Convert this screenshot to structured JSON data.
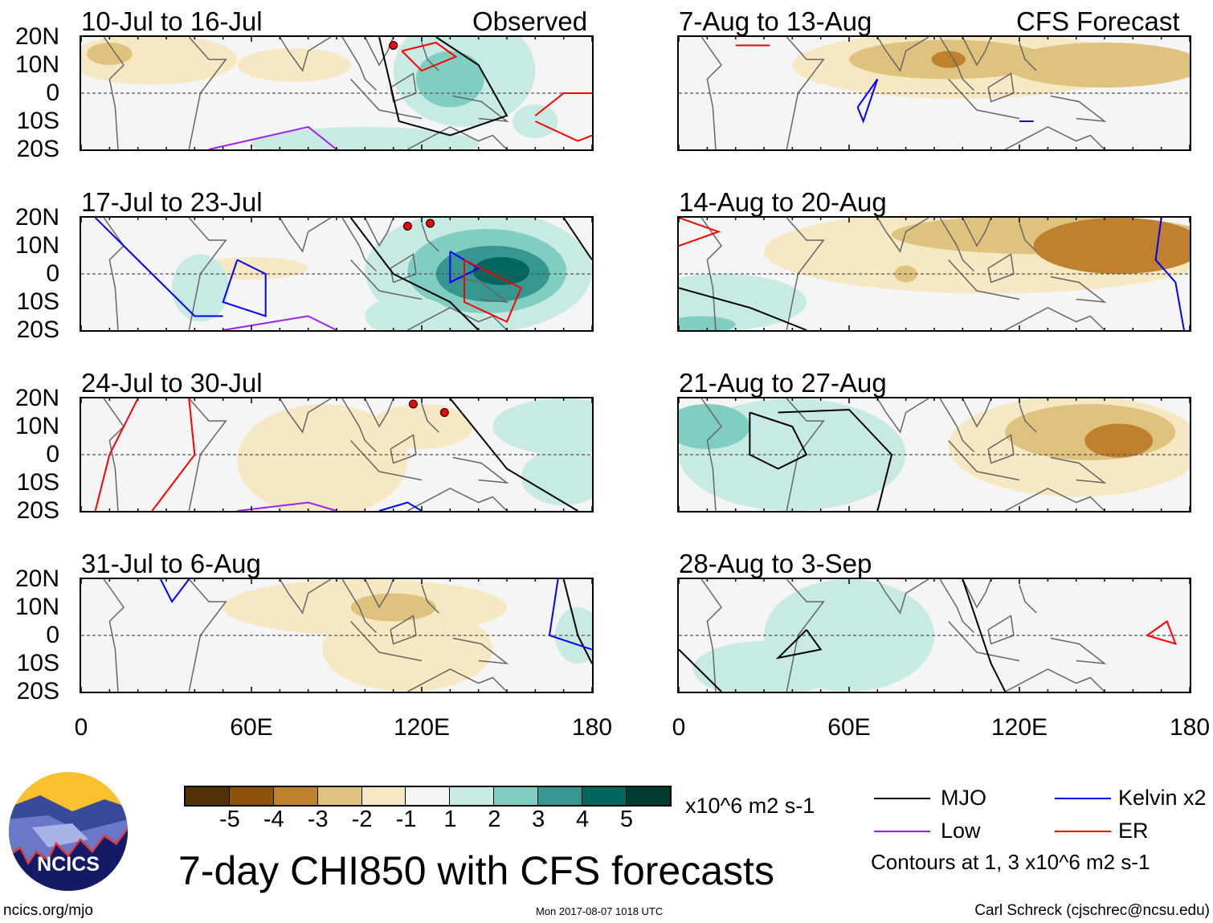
{
  "columns": {
    "left_header": "Observed",
    "right_header": "CFS Forecast"
  },
  "panels_left": [
    {
      "title": "10-Jul to 16-Jul"
    },
    {
      "title": "17-Jul to 23-Jul"
    },
    {
      "title": "24-Jul to 30-Jul"
    },
    {
      "title": "31-Jul to 6-Aug"
    }
  ],
  "panels_right": [
    {
      "title": "7-Aug to 13-Aug"
    },
    {
      "title": "14-Aug to 20-Aug"
    },
    {
      "title": "21-Aug to 27-Aug"
    },
    {
      "title": "28-Aug to 3-Sep"
    }
  ],
  "lat_labels": [
    "20N",
    "10N",
    "0",
    "10S",
    "20S"
  ],
  "lon_labels": [
    "0",
    "60E",
    "120E",
    "180"
  ],
  "colorbar": {
    "colors": [
      "#543005",
      "#8c510a",
      "#bf812d",
      "#dfc27d",
      "#f6e8c3",
      "#f5f5f5",
      "#c7eae5",
      "#80cdc1",
      "#35978f",
      "#01665e",
      "#003c30"
    ],
    "labels": [
      "-5",
      "-4",
      "-3",
      "-2",
      "-1",
      "1",
      "2",
      "3",
      "4",
      "5"
    ],
    "units": "x10^6 m2 s-1"
  },
  "legend": {
    "items": [
      {
        "label": "MJO",
        "color": "#000000"
      },
      {
        "label": "Kelvin x2",
        "color": "#0000ff"
      },
      {
        "label": "Low",
        "color": "#a020f0"
      },
      {
        "label": "ER",
        "color": "#ff0000"
      }
    ],
    "contours_note": "Contours at 1, 3 x10^6 m2 s-1"
  },
  "main_title": "7-day CHI850 with CFS forecasts",
  "logo_text": "NCICS",
  "footer": {
    "url": "ncics.org/mjo",
    "timestamp": "Mon 2017-08-07 1018 UTC",
    "credit": "Carl Schreck (cjschrec@ncsu.edu)"
  }
}
